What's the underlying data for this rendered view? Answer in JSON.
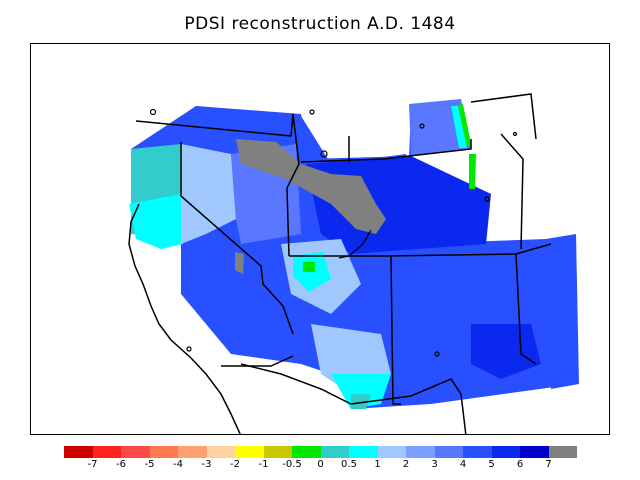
{
  "title": "PDSI reconstruction A.D. 1484",
  "legend": {
    "colors": [
      "#cc0000",
      "#ff2020",
      "#ff4a4a",
      "#ff7a50",
      "#ffa070",
      "#ffd0a0",
      "#ffff00",
      "#c8c800",
      "#00e800",
      "#33cccc",
      "#00ffff",
      "#a0c8ff",
      "#7aa0ff",
      "#5a78ff",
      "#2850ff",
      "#0a28ee",
      "#0000c8",
      "#808080"
    ],
    "labels": [
      "-7",
      "-6",
      "-5",
      "-4",
      "-3",
      "-2",
      "-1",
      "-0.5",
      "0",
      "0.5",
      "1",
      "2",
      "3",
      "4",
      "5",
      "6",
      "7"
    ]
  },
  "colors": {
    "background": "#ffffff",
    "deep_blue": "#0a28ee",
    "blue": "#2850ff",
    "mid_blue": "#5a78ff",
    "light_blue": "#a0c8ff",
    "cyan": "#00ffff",
    "teal": "#33cccc",
    "green": "#00e800",
    "gray": "#808080"
  }
}
